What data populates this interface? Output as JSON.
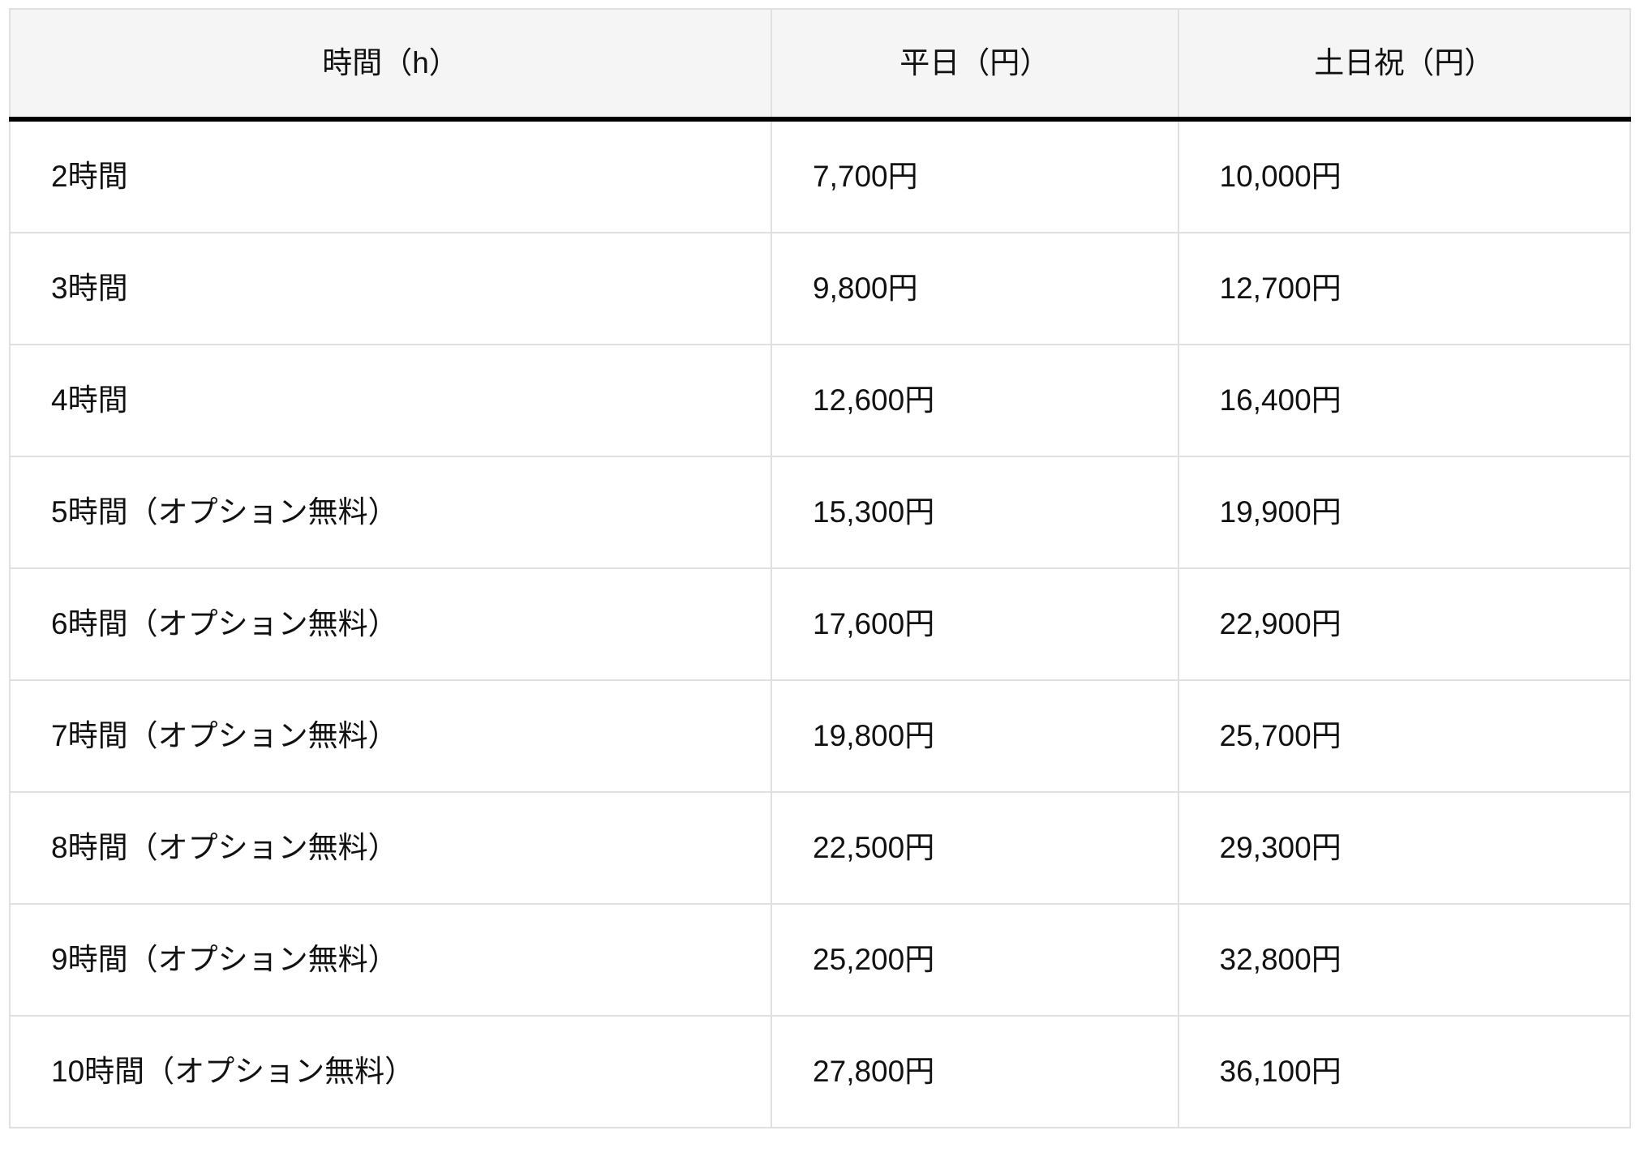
{
  "theme": {
    "page_bg": "#ffffff",
    "header_bg": "#f5f5f6",
    "row_bg": "#ffffff",
    "grid_color": "#e0e0e0",
    "header_rule_color": "#000000",
    "text_color": "#111111"
  },
  "table": {
    "columns": [
      "時間（h）",
      "平日（円）",
      "土日祝（円）"
    ],
    "rows": [
      {
        "duration": "2時間",
        "weekday": "7,700円",
        "weekend": "10,000円"
      },
      {
        "duration": "3時間",
        "weekday": "9,800円",
        "weekend": "12,700円"
      },
      {
        "duration": "4時間",
        "weekday": "12,600円",
        "weekend": "16,400円"
      },
      {
        "duration": "5時間（オプション無料）",
        "weekday": "15,300円",
        "weekend": "19,900円"
      },
      {
        "duration": "6時間（オプション無料）",
        "weekday": "17,600円",
        "weekend": "22,900円"
      },
      {
        "duration": "7時間（オプション無料）",
        "weekday": "19,800円",
        "weekend": "25,700円"
      },
      {
        "duration": "8時間（オプション無料）",
        "weekday": "22,500円",
        "weekend": "29,300円"
      },
      {
        "duration": "9時間（オプション無料）",
        "weekday": "25,200円",
        "weekend": "32,800円"
      },
      {
        "duration": "10時間（オプション無料）",
        "weekday": "27,800円",
        "weekend": "36,100円"
      }
    ]
  }
}
